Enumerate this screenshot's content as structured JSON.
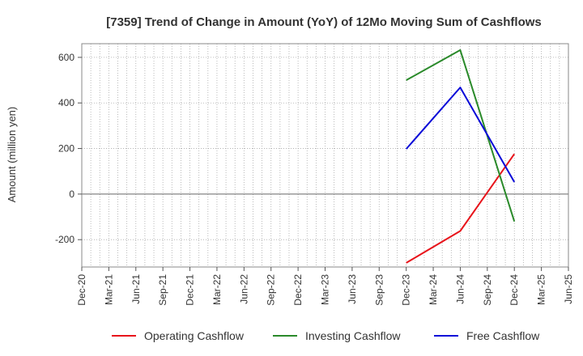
{
  "chart_data": {
    "type": "line",
    "title": "[7359]  Trend of Change in Amount (YoY) of 12Mo Moving Sum of Cashflows",
    "xlabel": "",
    "ylabel": "Amount (million yen)",
    "ylim": [
      -320,
      660
    ],
    "yticks": [
      600,
      400,
      200,
      0,
      -200
    ],
    "ytick_labels": [
      "600",
      "400",
      "200",
      "0",
      "-200"
    ],
    "categories": [
      "Dec-20",
      "Mar-21",
      "Jun-21",
      "Sep-21",
      "Dec-21",
      "Mar-22",
      "Jun-22",
      "Sep-22",
      "Dec-22",
      "Mar-23",
      "Jun-23",
      "Sep-23",
      "Dec-23",
      "Mar-24",
      "Jun-24",
      "Sep-24",
      "Dec-24",
      "Mar-25",
      "Jun-25"
    ],
    "grid": true,
    "legend_position": "bottom",
    "series": [
      {
        "name": "Operating Cashflow",
        "color": "#e8141b",
        "points": [
          [
            "Dec-23",
            -302
          ],
          [
            "Jun-24",
            -162
          ],
          [
            "Dec-24",
            176
          ]
        ]
      },
      {
        "name": "Investing Cashflow",
        "color": "#2a8a2a",
        "points": [
          [
            "Dec-23",
            500
          ],
          [
            "Jun-24",
            632
          ],
          [
            "Dec-24",
            -120
          ]
        ]
      },
      {
        "name": "Free Cashflow",
        "color": "#0a0ad8",
        "points": [
          [
            "Dec-23",
            198
          ],
          [
            "Jun-24",
            468
          ],
          [
            "Dec-24",
            53
          ]
        ]
      }
    ]
  }
}
